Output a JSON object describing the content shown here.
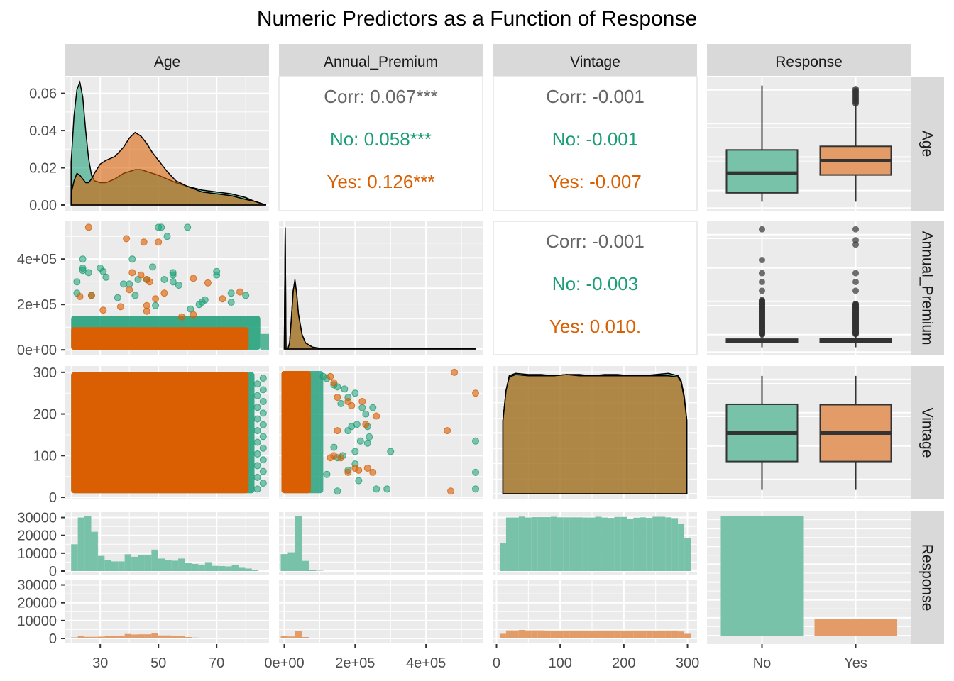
{
  "chart_data": {
    "type": "pairs",
    "title": "Numeric Predictors as a Function of Response",
    "variables": [
      "Age",
      "Annual_Premium",
      "Vintage",
      "Response"
    ],
    "group_variable": "Response",
    "groups": [
      {
        "name": "No",
        "color": "#1B9E77"
      },
      {
        "name": "Yes",
        "color": "#D95F02"
      }
    ],
    "axes": {
      "Age": {
        "range": [
          18,
          88
        ],
        "ticks": [
          30,
          50,
          70
        ],
        "tick_labels": [
          "30",
          "50",
          "70"
        ]
      },
      "Annual_Premium": {
        "range": [
          -15000,
          560000
        ],
        "ticks": [
          0,
          200000,
          400000
        ],
        "tick_labels": [
          "0e+00",
          "2e+05",
          "4e+05"
        ]
      },
      "Vintage": {
        "range": [
          -5,
          315
        ],
        "ticks": [
          0,
          100,
          200,
          300
        ],
        "tick_labels": [
          "0",
          "100",
          "200",
          "300"
        ]
      },
      "Response": {
        "categories": [
          "No",
          "Yes"
        ],
        "tick_labels": [
          "No",
          "Yes"
        ]
      }
    },
    "age_density": {
      "range": [
        0,
        0.069
      ],
      "ticks": [
        0,
        0.02,
        0.04,
        0.06
      ],
      "tick_labels": [
        "0.00",
        "0.02",
        "0.04",
        "0.06"
      ],
      "x": [
        20,
        21,
        22,
        23,
        24,
        25,
        26,
        27,
        28,
        30,
        32,
        35,
        38,
        40,
        42,
        44,
        46,
        48,
        50,
        53,
        56,
        60,
        65,
        70,
        75,
        80,
        83,
        85,
        87
      ],
      "series": [
        {
          "name": "No",
          "values": [
            0.023,
            0.048,
            0.062,
            0.066,
            0.058,
            0.04,
            0.025,
            0.016,
            0.013,
            0.012,
            0.012,
            0.014,
            0.017,
            0.018,
            0.019,
            0.019,
            0.018,
            0.017,
            0.016,
            0.014,
            0.012,
            0.01,
            0.008,
            0.007,
            0.006,
            0.004,
            0.002,
            0.001,
            0.0
          ]
        },
        {
          "name": "Yes",
          "values": [
            0.006,
            0.013,
            0.017,
            0.016,
            0.014,
            0.012,
            0.012,
            0.014,
            0.017,
            0.022,
            0.024,
            0.026,
            0.031,
            0.036,
            0.039,
            0.037,
            0.033,
            0.028,
            0.024,
            0.018,
            0.013,
            0.01,
            0.007,
            0.006,
            0.005,
            0.003,
            0.002,
            0.001,
            0.0
          ]
        }
      ]
    },
    "premium_density": {
      "x": [
        0,
        2600,
        5000,
        10000,
        15000,
        20000,
        25000,
        30000,
        35000,
        40000,
        50000,
        60000,
        80000,
        100000,
        200000,
        540000
      ],
      "series": [
        {
          "name": "No",
          "values": [
            0.0,
            1.0,
            0.0,
            0.0,
            0.05,
            0.25,
            0.48,
            0.56,
            0.45,
            0.28,
            0.12,
            0.05,
            0.015,
            0.006,
            0.002,
            0.002
          ]
        },
        {
          "name": "Yes",
          "values": [
            0.0,
            1.0,
            0.0,
            0.0,
            0.05,
            0.25,
            0.47,
            0.57,
            0.46,
            0.29,
            0.12,
            0.05,
            0.015,
            0.006,
            0.002,
            0.002
          ]
        }
      ]
    },
    "vintage_density": {
      "x": [
        10,
        15,
        20,
        30,
        50,
        70,
        90,
        110,
        130,
        150,
        170,
        190,
        210,
        230,
        250,
        270,
        285,
        290,
        295,
        299
      ],
      "series": [
        {
          "name": "No",
          "values": [
            0.6,
            0.85,
            0.97,
            0.99,
            0.98,
            0.98,
            0.97,
            0.98,
            0.98,
            0.97,
            0.98,
            0.98,
            0.97,
            0.97,
            0.98,
            0.99,
            0.97,
            0.93,
            0.8,
            0.6
          ]
        },
        {
          "name": "Yes",
          "values": [
            0.6,
            0.85,
            0.96,
            0.98,
            0.97,
            0.97,
            0.97,
            0.98,
            0.97,
            0.97,
            0.97,
            0.97,
            0.97,
            0.97,
            0.97,
            0.97,
            0.96,
            0.92,
            0.78,
            0.6
          ]
        }
      ]
    },
    "correlations": [
      {
        "pair": [
          "Age",
          "Annual_Premium"
        ],
        "corr": "Corr: 0.067***",
        "no": "No: 0.058***",
        "yes": "Yes: 0.126***"
      },
      {
        "pair": [
          "Age",
          "Vintage"
        ],
        "corr": "Corr: -0.001",
        "no": "No: -0.001",
        "yes": "Yes: -0.007"
      },
      {
        "pair": [
          "Annual_Premium",
          "Vintage"
        ],
        "corr": "Corr: -0.001",
        "no": "No: -0.003",
        "yes": "Yes: 0.010."
      }
    ],
    "boxplots": {
      "Age": {
        "range": [
          17,
          88
        ],
        "No": {
          "min": 20,
          "q1": 25,
          "median": 36,
          "q3": 49,
          "max": 85
        },
        "Yes": {
          "min": 20,
          "q1": 35,
          "median": 43,
          "q3": 51,
          "max": 75,
          "outliers_max": 83
        }
      },
      "Annual_Premium": {
        "range": [
          -15000,
          560000
        ],
        "No": {
          "min": 2630,
          "q1": 24000,
          "median": 31500,
          "q3": 39500,
          "max": 61000,
          "outliers": [
            70000,
            100000,
            150000,
            200000,
            260000,
            300000,
            340000,
            400000,
            540000
          ]
        },
        "Yes": {
          "min": 2630,
          "q1": 26000,
          "median": 33000,
          "q3": 41000,
          "max": 63000,
          "outliers": [
            70000,
            100000,
            150000,
            200000,
            260000,
            300000,
            340000,
            470000,
            490000,
            540000
          ]
        }
      },
      "Vintage": {
        "range": [
          -5,
          315
        ],
        "No": {
          "min": 10,
          "q1": 82,
          "median": 154,
          "q3": 227,
          "max": 299
        },
        "Yes": {
          "min": 10,
          "q1": 82,
          "median": 154,
          "q3": 226,
          "max": 299
        }
      }
    },
    "histograms": {
      "count_range": [
        0,
        33000
      ],
      "count_ticks": [
        0,
        10000,
        20000,
        30000
      ],
      "count_tick_labels": [
        "0",
        "10000",
        "20000",
        "30000"
      ],
      "Age": {
        "bin_edges": [
          20,
          22.3,
          24.6,
          26.9,
          29.2,
          31.5,
          33.8,
          36.1,
          38.4,
          40.7,
          43.0,
          45.3,
          47.6,
          49.9,
          52.2,
          54.5,
          56.8,
          59.1,
          61.4,
          63.7,
          66.0,
          68.3,
          70.6,
          72.9,
          75.2,
          77.5,
          79.8,
          82.1,
          84.4,
          86.7
        ],
        "No": [
          15000,
          30000,
          31000,
          22000,
          8500,
          6200,
          5400,
          5400,
          9400,
          8000,
          8800,
          8800,
          12000,
          7000,
          6200,
          5800,
          7000,
          4500,
          4000,
          3600,
          5000,
          2900,
          2800,
          2600,
          3200,
          1800,
          1400,
          600,
          0
        ],
        "Yes": [
          600,
          1300,
          900,
          900,
          1000,
          1300,
          1600,
          1600,
          2500,
          2200,
          2300,
          2300,
          3100,
          1700,
          1700,
          1300,
          1300,
          800,
          500,
          400,
          400,
          200,
          200,
          200,
          200,
          200,
          200,
          100,
          0
        ]
      },
      "Annual_Premium": {
        "bin_edges": [
          -10000,
          10000,
          30000,
          50000,
          70000,
          90000,
          110000,
          130000
        ],
        "No": [
          9500,
          10500,
          31000,
          5700,
          500,
          200,
          0
        ],
        "Yes": [
          1500,
          1100,
          4300,
          800,
          300,
          300,
          0
        ]
      },
      "Vintage": {
        "bin_edges": [
          5,
          15,
          25,
          35,
          45,
          55,
          65,
          75,
          85,
          95,
          105,
          115,
          125,
          135,
          145,
          155,
          165,
          175,
          185,
          195,
          205,
          215,
          225,
          235,
          245,
          255,
          265,
          275,
          285,
          295,
          305
        ],
        "No": [
          15500,
          30000,
          30000,
          30500,
          30000,
          30200,
          30200,
          30200,
          30400,
          30100,
          30100,
          30100,
          30100,
          30000,
          30000,
          30400,
          30000,
          29800,
          30300,
          30300,
          29300,
          29900,
          30100,
          29800,
          30400,
          30400,
          30100,
          29700,
          26400,
          18300
        ],
        "Yes": [
          2600,
          4500,
          4500,
          4800,
          4500,
          4500,
          4500,
          4400,
          4300,
          4400,
          4400,
          4400,
          4400,
          4400,
          4400,
          4400,
          4400,
          4400,
          4400,
          4400,
          4400,
          4400,
          4400,
          4400,
          4300,
          4400,
          4400,
          4400,
          3900,
          2600
        ]
      }
    },
    "response_bar": {
      "categories": [
        "No",
        "Yes"
      ],
      "values": [
        334399,
        46710
      ]
    },
    "scatter_outliers": {
      "age_vs_premium": {
        "No": [
          [
            24,
            400000
          ],
          [
            24,
            360000
          ],
          [
            24,
            350000
          ],
          [
            26,
            340000
          ],
          [
            30,
            360000
          ],
          [
            31,
            345000
          ],
          [
            32,
            320000
          ],
          [
            22,
            300000
          ],
          [
            38,
            290000
          ],
          [
            40,
            290000
          ],
          [
            41,
            400000
          ],
          [
            48,
            365000
          ],
          [
            43,
            310000
          ],
          [
            46,
            310000
          ],
          [
            55,
            340000
          ],
          [
            55,
            330000
          ],
          [
            55,
            300000
          ],
          [
            70,
            345000
          ],
          [
            70,
            330000
          ],
          [
            75,
            250000
          ],
          [
            80,
            240000
          ],
          [
            57,
            285000
          ],
          [
            52,
            310000
          ],
          [
            27,
            240000
          ],
          [
            22,
            250000
          ],
          [
            36,
            230000
          ],
          [
            42,
            240000
          ],
          [
            49,
            195000
          ],
          [
            61,
            180000
          ],
          [
            66,
            220000
          ],
          [
            65,
            210000
          ],
          [
            64,
            200000
          ],
          [
            75,
            210000
          ],
          [
            53,
            500000
          ],
          [
            60,
            540000
          ],
          [
            50,
            540000
          ],
          [
            51,
            540000
          ]
        ],
        "Yes": [
          [
            26,
            540000
          ],
          [
            39,
            490000
          ],
          [
            45,
            475000
          ],
          [
            50,
            475000
          ],
          [
            41,
            340000
          ],
          [
            44,
            330000
          ],
          [
            46,
            310000
          ],
          [
            47,
            300000
          ],
          [
            40,
            265000
          ],
          [
            52,
            250000
          ],
          [
            62,
            315000
          ],
          [
            67,
            295000
          ],
          [
            72,
            225000
          ],
          [
            78,
            255000
          ],
          [
            46,
            195000
          ],
          [
            49,
            225000
          ],
          [
            23,
            235000
          ],
          [
            27,
            240000
          ],
          [
            31,
            175000
          ],
          [
            37,
            190000
          ],
          [
            62,
            155000
          ],
          [
            58,
            145000
          ],
          [
            46,
            170000
          ]
        ]
      },
      "premium_vs_vintage": {
        "No": [
          [
            110000,
            290000
          ],
          [
            120000,
            285000
          ],
          [
            140000,
            270000
          ],
          [
            150000,
            265000
          ],
          [
            170000,
            260000
          ],
          [
            180000,
            240000
          ],
          [
            200000,
            250000
          ],
          [
            220000,
            215000
          ],
          [
            160000,
            225000
          ],
          [
            180000,
            160000
          ],
          [
            190000,
            170000
          ],
          [
            205000,
            175000
          ],
          [
            230000,
            200000
          ],
          [
            250000,
            215000
          ],
          [
            235000,
            170000
          ],
          [
            240000,
            145000
          ],
          [
            140000,
            120000
          ],
          [
            150000,
            95000
          ],
          [
            165000,
            100000
          ],
          [
            200000,
            110000
          ],
          [
            215000,
            135000
          ],
          [
            235000,
            130000
          ],
          [
            300000,
            110000
          ],
          [
            540000,
            135000
          ],
          [
            540000,
            60000
          ],
          [
            540000,
            20000
          ],
          [
            150000,
            15000
          ],
          [
            210000,
            40000
          ],
          [
            260000,
            20000
          ],
          [
            290000,
            20000
          ],
          [
            120000,
            55000
          ],
          [
            180000,
            65000
          ],
          [
            200000,
            80000
          ]
        ],
        "Yes": [
          [
            130000,
            290000
          ],
          [
            140000,
            275000
          ],
          [
            480000,
            300000
          ],
          [
            540000,
            250000
          ],
          [
            150000,
            240000
          ],
          [
            180000,
            230000
          ],
          [
            220000,
            230000
          ],
          [
            230000,
            175000
          ],
          [
            460000,
            160000
          ],
          [
            150000,
            160000
          ],
          [
            190000,
            220000
          ],
          [
            260000,
            195000
          ],
          [
            235000,
            70000
          ],
          [
            250000,
            60000
          ],
          [
            200000,
            70000
          ],
          [
            210000,
            65000
          ],
          [
            180000,
            60000
          ],
          [
            470000,
            15000
          ],
          [
            160000,
            95000
          ],
          [
            140000,
            100000
          ],
          [
            130000,
            95000
          ]
        ]
      }
    }
  }
}
